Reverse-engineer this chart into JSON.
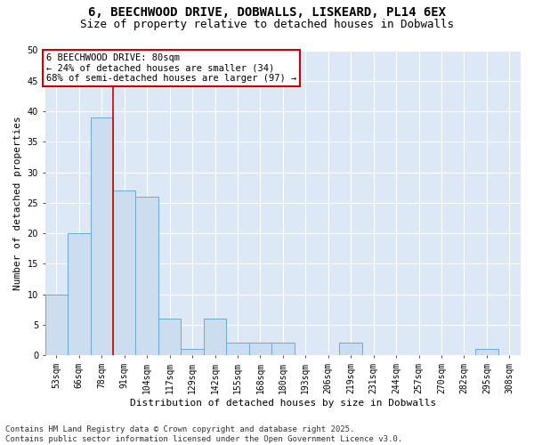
{
  "title": "6, BEECHWOOD DRIVE, DOBWALLS, LISKEARD, PL14 6EX",
  "subtitle": "Size of property relative to detached houses in Dobwalls",
  "xlabel": "Distribution of detached houses by size in Dobwalls",
  "ylabel": "Number of detached properties",
  "bar_color": "#ccddf0",
  "bar_edge_color": "#6aaad4",
  "categories": [
    "53sqm",
    "66sqm",
    "78sqm",
    "91sqm",
    "104sqm",
    "117sqm",
    "129sqm",
    "142sqm",
    "155sqm",
    "168sqm",
    "180sqm",
    "193sqm",
    "206sqm",
    "219sqm",
    "231sqm",
    "244sqm",
    "257sqm",
    "270sqm",
    "282sqm",
    "295sqm",
    "308sqm"
  ],
  "values": [
    10,
    20,
    39,
    27,
    26,
    6,
    1,
    6,
    2,
    2,
    2,
    0,
    0,
    2,
    0,
    0,
    0,
    0,
    0,
    1,
    0
  ],
  "ylim": [
    0,
    50
  ],
  "yticks": [
    0,
    5,
    10,
    15,
    20,
    25,
    30,
    35,
    40,
    45,
    50
  ],
  "vline_x_index": 2,
  "vline_color": "#cc0000",
  "annotation_text": "6 BEECHWOOD DRIVE: 80sqm\n← 24% of detached houses are smaller (34)\n68% of semi-detached houses are larger (97) →",
  "annotation_box_facecolor": "#ffffff",
  "annotation_box_edgecolor": "#cc0000",
  "plot_bg_color": "#dce8f5",
  "fig_bg_color": "#ffffff",
  "grid_color": "#ffffff",
  "footer_text": "Contains HM Land Registry data © Crown copyright and database right 2025.\nContains public sector information licensed under the Open Government Licence v3.0.",
  "title_fontsize": 10,
  "subtitle_fontsize": 9,
  "axis_label_fontsize": 8,
  "tick_fontsize": 7,
  "annotation_fontsize": 7.5,
  "footer_fontsize": 6.5
}
